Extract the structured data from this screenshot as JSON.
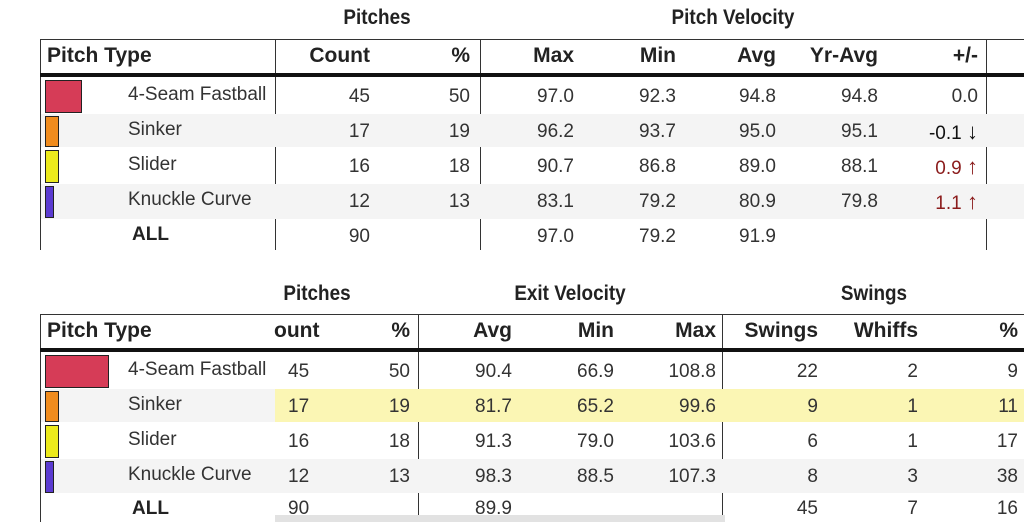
{
  "table1": {
    "group_headers": {
      "pitches": "Pitches",
      "velocity": "Pitch Velocity"
    },
    "columns": {
      "pitch_type": "Pitch Type",
      "count": "Count",
      "pct": "%",
      "max": "Max",
      "min": "Min",
      "avg": "Avg",
      "yr_avg": "Yr-Avg",
      "diff": "+/-"
    },
    "rows": [
      {
        "name": "4-Seam Fastball",
        "color": "#d63c57",
        "count": "45",
        "pct": "50",
        "max": "97.0",
        "min": "92.3",
        "avg": "94.8",
        "yr_avg": "94.8",
        "diff": "0.0",
        "arrow": ""
      },
      {
        "name": "Sinker",
        "color": "#f08c1e",
        "count": "17",
        "pct": "19",
        "max": "96.2",
        "min": "93.7",
        "avg": "95.0",
        "yr_avg": "95.1",
        "diff": "-0.1",
        "arrow": "↓"
      },
      {
        "name": "Slider",
        "color": "#ecea1c",
        "count": "16",
        "pct": "18",
        "max": "90.7",
        "min": "86.8",
        "avg": "89.0",
        "yr_avg": "88.1",
        "diff": "0.9",
        "arrow": "↑"
      },
      {
        "name": "Knuckle Curve",
        "color": "#5b3bd1",
        "count": "12",
        "pct": "13",
        "max": "83.1",
        "min": "79.2",
        "avg": "80.9",
        "yr_avg": "79.8",
        "diff": "1.1",
        "arrow": "↑"
      }
    ],
    "all": {
      "label": "ALL",
      "count": "90",
      "max": "97.0",
      "min": "79.2",
      "avg": "91.9"
    }
  },
  "table2": {
    "group_headers": {
      "pitches": "Pitches",
      "exit_velocity": "Exit Velocity",
      "swings": "Swings"
    },
    "columns": {
      "pitch_type": "Pitch Type",
      "count": "ount",
      "pct": "%",
      "avg": "Avg",
      "min": "Min",
      "max": "Max",
      "swings": "Swings",
      "whiffs": "Whiffs",
      "whiff_pct": "%"
    },
    "rows": [
      {
        "name": "4-Seam Fastball",
        "color": "#d63c57",
        "count": "45",
        "pct": "50",
        "avg": "90.4",
        "min": "66.9",
        "max": "108.8",
        "swings": "22",
        "whiffs": "2",
        "whiff_pct": "9"
      },
      {
        "name": "Sinker",
        "color": "#f08c1e",
        "count": "17",
        "pct": "19",
        "avg": "81.7",
        "min": "65.2",
        "max": "99.6",
        "swings": "9",
        "whiffs": "1",
        "whiff_pct": "11"
      },
      {
        "name": "Slider",
        "color": "#ecea1c",
        "count": "16",
        "pct": "18",
        "avg": "91.3",
        "min": "79.0",
        "max": "103.6",
        "swings": "6",
        "whiffs": "1",
        "whiff_pct": "17"
      },
      {
        "name": "Knuckle Curve",
        "color": "#5b3bd1",
        "count": "12",
        "pct": "13",
        "avg": "98.3",
        "min": "88.5",
        "max": "107.3",
        "swings": "8",
        "whiffs": "3",
        "whiff_pct": "38"
      }
    ],
    "all": {
      "label": "ALL",
      "count": "90",
      "avg": "89.9",
      "swings": "45",
      "whiffs": "7",
      "whiff_pct": "16"
    }
  }
}
